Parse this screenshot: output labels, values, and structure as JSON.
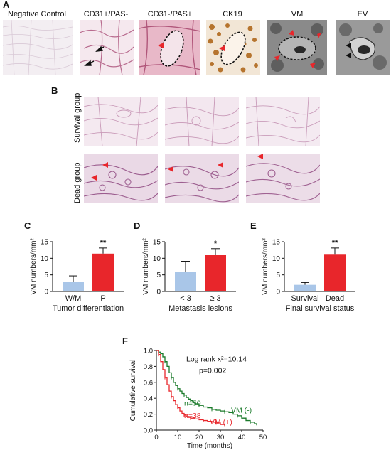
{
  "panels": {
    "A": "A",
    "B": "B",
    "C": "C",
    "D": "D",
    "E": "E",
    "F": "F"
  },
  "panelA": {
    "titles": [
      "Negative Control",
      "CD31+/PAS-",
      "CD31-/PAS+",
      "CK19",
      "VM",
      "EV"
    ]
  },
  "panelB": {
    "rows": [
      "Survival group",
      "Dead group"
    ]
  },
  "colors": {
    "blue_bar": "#a9c6e8",
    "red_bar": "#e8262b",
    "vm_neg_line": "#1a7a2a",
    "vm_pos_line": "#e8262b"
  },
  "chart_data": [
    {
      "type": "bar",
      "panel": "C",
      "categories": [
        "W/M",
        "P"
      ],
      "values": [
        2.8,
        11.4
      ],
      "errors": [
        1.9,
        1.7
      ],
      "colors": [
        "#a9c6e8",
        "#e8262b"
      ],
      "significance": "**",
      "ylabel": "VM numbers/mm²",
      "xlabel": "Tumor differentiation",
      "ylim": [
        0,
        15
      ],
      "yticks": [
        "0",
        "5",
        "10",
        "15"
      ]
    },
    {
      "type": "bar",
      "panel": "D",
      "categories": [
        "< 3",
        "≥ 3"
      ],
      "values": [
        6.0,
        11.0
      ],
      "errors": [
        3.1,
        1.9
      ],
      "colors": [
        "#a9c6e8",
        "#e8262b"
      ],
      "significance": "*",
      "ylabel": "VM numbers/mm²",
      "xlabel": "Metastasis lesions",
      "ylim": [
        0,
        15
      ],
      "yticks": [
        "0",
        "5",
        "10",
        "15"
      ]
    },
    {
      "type": "bar",
      "panel": "E",
      "categories": [
        "Survival",
        "Dead"
      ],
      "values": [
        2.0,
        11.3
      ],
      "errors": [
        0.7,
        1.8
      ],
      "colors": [
        "#a9c6e8",
        "#e8262b"
      ],
      "significance": "**",
      "ylabel": "VM numbers/mm²",
      "xlabel": "Final survival status",
      "ylim": [
        0,
        15
      ],
      "yticks": [
        "0",
        "5",
        "10",
        "15"
      ]
    },
    {
      "type": "line",
      "panel": "F",
      "ylabel": "Cumulative survival",
      "xlabel": "Time (months)",
      "xlim": [
        0,
        50
      ],
      "ylim": [
        0,
        1.0
      ],
      "xticks": [
        "0",
        "10",
        "20",
        "30",
        "40",
        "50"
      ],
      "yticks": [
        "0.0",
        "0.2",
        "0.4",
        "0.6",
        "0.8",
        "1.0"
      ],
      "annotation_1": "Log rank x²=10.14",
      "annotation_2": "p=0.002",
      "series": [
        {
          "name": "VM (-)",
          "n_label": "n=50",
          "color": "#1a7a2a",
          "x": [
            0,
            1,
            2,
            3,
            4,
            5,
            6,
            7,
            8,
            9,
            10,
            11,
            12,
            13,
            14,
            15,
            16,
            17,
            18,
            20,
            22,
            24,
            26,
            28,
            30,
            32,
            34,
            36,
            38,
            40,
            42,
            44,
            46,
            47
          ],
          "y": [
            1.0,
            0.98,
            0.96,
            0.92,
            0.86,
            0.8,
            0.72,
            0.66,
            0.6,
            0.56,
            0.52,
            0.49,
            0.46,
            0.44,
            0.41,
            0.39,
            0.37,
            0.35,
            0.33,
            0.31,
            0.29,
            0.28,
            0.26,
            0.25,
            0.24,
            0.23,
            0.22,
            0.2,
            0.18,
            0.15,
            0.12,
            0.1,
            0.08,
            0.06
          ]
        },
        {
          "name": "VM (+)",
          "n_label": "n=38",
          "color": "#e8262b",
          "x": [
            0,
            1,
            2,
            3,
            4,
            5,
            6,
            7,
            8,
            9,
            10,
            11,
            12,
            13,
            14,
            15,
            16,
            18,
            20,
            22,
            24,
            26,
            28,
            30,
            32
          ],
          "y": [
            1.0,
            0.95,
            0.86,
            0.76,
            0.66,
            0.57,
            0.49,
            0.42,
            0.37,
            0.32,
            0.28,
            0.24,
            0.21,
            0.19,
            0.17,
            0.16,
            0.15,
            0.14,
            0.13,
            0.12,
            0.11,
            0.1,
            0.09,
            0.07,
            0.05
          ]
        }
      ]
    }
  ]
}
